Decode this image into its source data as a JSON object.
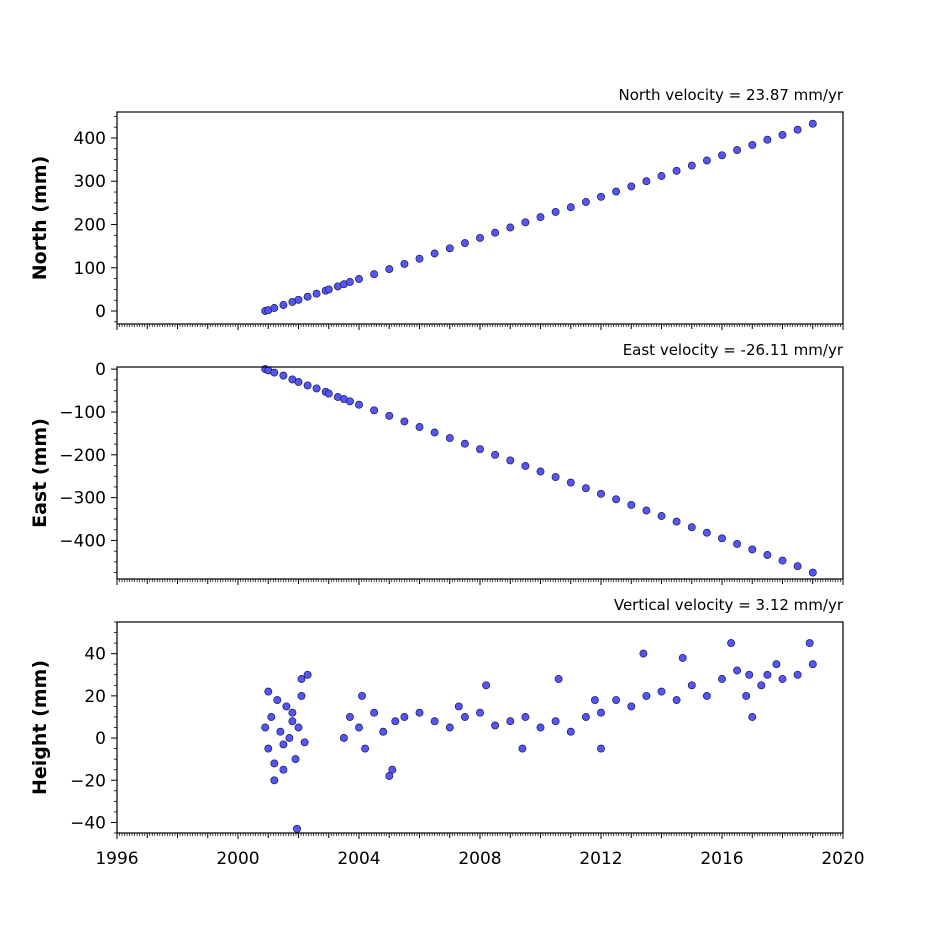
{
  "chart_data": [
    {
      "type": "scatter",
      "title": "North velocity = 23.87 mm/yr",
      "ylabel": "North (mm)",
      "xlabel": "",
      "xlim": [
        1996,
        2020
      ],
      "ylim": [
        -30,
        460
      ],
      "yticks": [
        0,
        100,
        200,
        300,
        400
      ],
      "xtick_labels_shown": false,
      "grid": false,
      "marker_color": "#5555ff",
      "edge_color": "#1a1a40",
      "series": [
        {
          "x": [
            2000.9,
            2001.0,
            2001.2,
            2001.5,
            2001.8,
            2002.0,
            2002.3,
            2002.6,
            2002.9,
            2003.0,
            2003.3,
            2003.5,
            2003.7,
            2004.0,
            2004.5,
            2005.0,
            2005.5,
            2006.0,
            2006.5,
            2007.0,
            2007.5,
            2008.0,
            2008.5,
            2009.0,
            2009.5,
            2010.0,
            2010.5,
            2011.0,
            2011.5,
            2012.0,
            2012.5,
            2013.0,
            2013.5,
            2014.0,
            2014.5,
            2015.0,
            2015.5,
            2016.0,
            2016.5,
            2017.0,
            2017.5,
            2018.0,
            2018.5,
            2019.0
          ],
          "y": [
            0,
            2,
            7,
            14,
            21,
            26,
            33,
            40,
            47,
            50,
            57,
            62,
            67,
            74,
            85,
            97,
            109,
            121,
            133,
            145,
            157,
            169,
            181,
            193,
            205,
            217,
            229,
            240,
            252,
            264,
            276,
            288,
            300,
            312,
            324,
            336,
            348,
            360,
            372,
            384,
            396,
            407,
            419,
            433
          ]
        }
      ]
    },
    {
      "type": "scatter",
      "title": "East velocity = -26.11 mm/yr",
      "ylabel": "East (mm)",
      "xlabel": "",
      "xlim": [
        1996,
        2020
      ],
      "ylim": [
        -490,
        5
      ],
      "yticks": [
        0,
        -100,
        -200,
        -300,
        -400
      ],
      "xtick_labels_shown": false,
      "grid": false,
      "marker_color": "#5555ff",
      "edge_color": "#1a1a40",
      "series": [
        {
          "x": [
            2000.9,
            2001.0,
            2001.2,
            2001.5,
            2001.8,
            2002.0,
            2002.3,
            2002.6,
            2002.9,
            2003.0,
            2003.3,
            2003.5,
            2003.7,
            2004.0,
            2004.5,
            2005.0,
            2005.5,
            2006.0,
            2006.5,
            2007.0,
            2007.5,
            2008.0,
            2008.5,
            2009.0,
            2009.5,
            2010.0,
            2010.5,
            2011.0,
            2011.5,
            2012.0,
            2012.5,
            2013.0,
            2013.5,
            2014.0,
            2014.5,
            2015.0,
            2015.5,
            2016.0,
            2016.5,
            2017.0,
            2017.5,
            2018.0,
            2018.5,
            2019.0
          ],
          "y": [
            0,
            -3,
            -8,
            -15,
            -24,
            -30,
            -38,
            -45,
            -53,
            -57,
            -65,
            -70,
            -75,
            -83,
            -96,
            -109,
            -122,
            -135,
            -148,
            -161,
            -174,
            -187,
            -200,
            -213,
            -226,
            -239,
            -252,
            -265,
            -278,
            -291,
            -304,
            -317,
            -330,
            -343,
            -356,
            -369,
            -382,
            -395,
            -408,
            -421,
            -434,
            -447,
            -460,
            -475
          ]
        }
      ]
    },
    {
      "type": "scatter",
      "title": "Vertical velocity = 3.12 mm/yr",
      "ylabel": "Height (mm)",
      "xlabel": "",
      "xlim": [
        1996,
        2020
      ],
      "ylim": [
        -45,
        55
      ],
      "yticks": [
        -40,
        -20,
        0,
        20,
        40
      ],
      "xticks": [
        1996,
        2000,
        2004,
        2008,
        2012,
        2016,
        2020
      ],
      "xtick_labels_shown": true,
      "grid": false,
      "marker_color": "#5555ff",
      "edge_color": "#1a1a40",
      "series": [
        {
          "x": [
            2000.9,
            2001.0,
            2001.1,
            2001.2,
            2001.3,
            2001.4,
            2001.5,
            2001.6,
            2001.7,
            2001.8,
            2001.9,
            2002.0,
            2002.1,
            2002.2,
            2001.0,
            2001.2,
            2001.5,
            2001.8,
            2001.95,
            2002.1,
            2003.5,
            2003.7,
            2004.0,
            2004.2,
            2004.5,
            2004.8,
            2005.0,
            2005.2,
            2005.5,
            2006.0,
            2006.5,
            2007.0,
            2007.5,
            2008.0,
            2008.5,
            2009.0,
            2009.5,
            2010.0,
            2010.5,
            2011.0,
            2011.5,
            2012.0,
            2012.5,
            2013.0,
            2013.5,
            2014.0,
            2014.5,
            2015.0,
            2015.5,
            2016.0,
            2016.5,
            2016.8,
            2017.0,
            2017.3,
            2017.5,
            2018.0,
            2018.5,
            2019.0,
            2004.1,
            2005.1,
            2007.3,
            2009.4,
            2011.8,
            2013.4,
            2014.7,
            2016.3,
            2016.9,
            2017.8,
            2018.9,
            2002.3,
            2008.2,
            2010.6,
            2012.0
          ],
          "y": [
            5,
            -5,
            10,
            -12,
            18,
            3,
            -3,
            15,
            0,
            8,
            -10,
            5,
            20,
            -2,
            22,
            -20,
            -15,
            12,
            -43,
            28,
            0,
            10,
            5,
            -5,
            12,
            3,
            -18,
            8,
            10,
            12,
            8,
            5,
            10,
            12,
            6,
            8,
            10,
            5,
            8,
            3,
            10,
            12,
            18,
            15,
            20,
            22,
            18,
            25,
            20,
            28,
            32,
            20,
            10,
            25,
            30,
            28,
            30,
            35,
            20,
            -15,
            15,
            -5,
            18,
            40,
            38,
            45,
            30,
            35,
            45,
            30,
            25,
            28,
            -5
          ]
        }
      ]
    }
  ]
}
